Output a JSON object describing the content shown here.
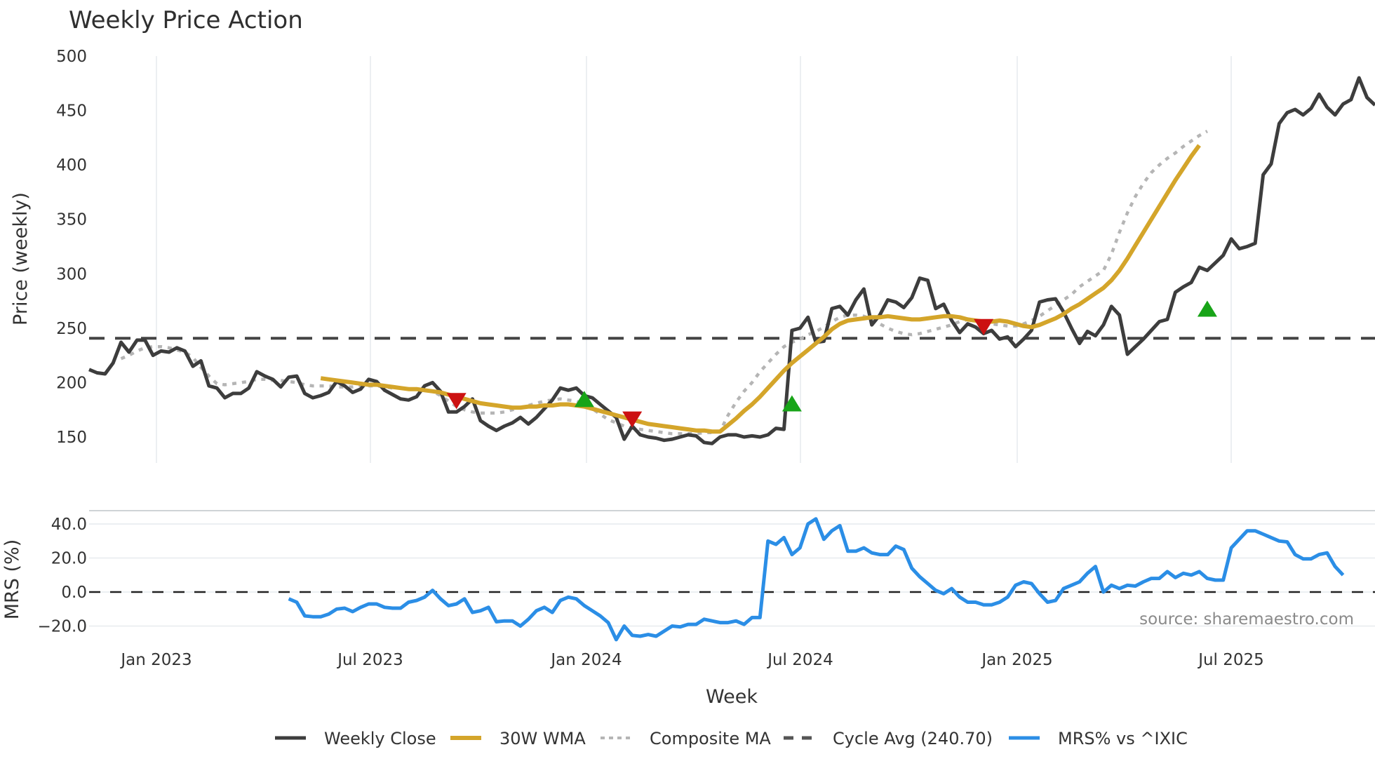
{
  "colors": {
    "close": "#3d3d3d",
    "wma": "#d4a52a",
    "composite": "#b5b5b5",
    "cycle": "#444444",
    "mrs": "#2b8ee6",
    "buy": "#18a418",
    "sell": "#cc1111",
    "grid": "#eceff2"
  },
  "labels": {
    "title": "Weekly Price Action",
    "price_ylabel": "Price (weekly)",
    "mrs_ylabel": "MRS (%)",
    "xlabel": "Week",
    "source": "source: sharemaestro.com"
  },
  "legend": [
    {
      "key": "close",
      "label": "Weekly Close"
    },
    {
      "key": "wma",
      "label": "30W WMA"
    },
    {
      "key": "composite",
      "label": "Composite MA"
    },
    {
      "key": "cycle",
      "label": "Cycle Avg (240.70)"
    },
    {
      "key": "mrs",
      "label": "MRS% vs ^IXIC"
    }
  ],
  "chart_data": [
    {
      "type": "line",
      "title": "Weekly Price Action",
      "xlabel": "Week",
      "ylabel": "Price (weekly)",
      "ylim": [
        120,
        500
      ],
      "yticks": [
        150,
        200,
        250,
        300,
        350,
        400,
        450,
        500
      ],
      "xticks": [
        "Jan 2023",
        "Jul 2023",
        "Jan 2024",
        "Jul 2024",
        "Jan 2025",
        "Jul 2025"
      ],
      "grid": true,
      "legend_position": "bottom",
      "cycle_avg": 240.7,
      "series": [
        {
          "name": "Weekly Close",
          "values": [
            212,
            209,
            208,
            218,
            237,
            228,
            239,
            239,
            225,
            229,
            228,
            232,
            229,
            215,
            220,
            197,
            195,
            186,
            190,
            190,
            195,
            210,
            206,
            203,
            196,
            205,
            206,
            190,
            186,
            188,
            191,
            201,
            197,
            191,
            194,
            203,
            201,
            193,
            189,
            185,
            184,
            187,
            197,
            200,
            192,
            173,
            173,
            178,
            185,
            165,
            160,
            156,
            160,
            163,
            168,
            162,
            168,
            176,
            184,
            195,
            193,
            195,
            188,
            186,
            180,
            174,
            168,
            148,
            160,
            152,
            150,
            149,
            147,
            148,
            150,
            152,
            151,
            145,
            144,
            150,
            152,
            152,
            150,
            151,
            150,
            152,
            158,
            157,
            248,
            250,
            260,
            237,
            238,
            268,
            270,
            262,
            276,
            286,
            253,
            262,
            276,
            274,
            269,
            278,
            296,
            294,
            268,
            272,
            257,
            246,
            254,
            251,
            245,
            248,
            240,
            242,
            233,
            240,
            248,
            274,
            276,
            277,
            265,
            250,
            236,
            247,
            243,
            253,
            270,
            262,
            226,
            233,
            240,
            248,
            256,
            258,
            283,
            288,
            292,
            306,
            303,
            310,
            317,
            332,
            323,
            325,
            328,
            391,
            401,
            438,
            448,
            451,
            446,
            452,
            465,
            453,
            446,
            456,
            460,
            480,
            462,
            455
          ]
        },
        {
          "name": "30W WMA",
          "start_index": 29,
          "values": [
            204,
            203,
            202,
            201,
            200,
            199,
            198,
            198,
            197,
            196,
            195,
            194,
            194,
            193,
            192,
            191,
            189,
            187,
            185,
            183,
            181,
            180,
            179,
            178,
            177,
            177,
            178,
            178,
            179,
            179,
            180,
            180,
            179,
            178,
            176,
            174,
            172,
            170,
            168,
            166,
            164,
            162,
            161,
            160,
            159,
            158,
            157,
            156,
            156,
            155,
            155,
            161,
            167,
            174,
            180,
            187,
            195,
            203,
            211,
            218,
            224,
            230,
            236,
            242,
            249,
            254,
            257,
            258,
            259,
            260,
            260,
            261,
            260,
            259,
            258,
            258,
            259,
            260,
            261,
            261,
            260,
            258,
            257,
            256,
            256,
            257,
            256,
            254,
            252,
            251,
            253,
            256,
            259,
            263,
            268,
            272,
            277,
            282,
            287,
            294,
            303,
            314,
            326,
            338,
            350,
            362,
            374,
            386,
            397,
            408,
            418
          ]
        },
        {
          "name": "Composite MA",
          "start_index": 4,
          "values": [
            222,
            225,
            229,
            232,
            233,
            233,
            232,
            230,
            228,
            223,
            214,
            206,
            199,
            198,
            199,
            200,
            201,
            203,
            203,
            202,
            202,
            201,
            200,
            198,
            197,
            197,
            197,
            196,
            196,
            196,
            197,
            197,
            197,
            196,
            195,
            195,
            194,
            194,
            193,
            192,
            188,
            183,
            178,
            175,
            173,
            172,
            172,
            172,
            173,
            175,
            177,
            179,
            181,
            183,
            184,
            185,
            184,
            183,
            180,
            176,
            171,
            166,
            163,
            160,
            158,
            157,
            156,
            155,
            154,
            153,
            153,
            153,
            153,
            154,
            154,
            155,
            170,
            182,
            192,
            200,
            210,
            218,
            226,
            233,
            237,
            240,
            244,
            247,
            251,
            256,
            260,
            262,
            262,
            261,
            258,
            254,
            250,
            247,
            245,
            244,
            245,
            247,
            249,
            251,
            253,
            256,
            258,
            257,
            256,
            254,
            253,
            252,
            252,
            254,
            257,
            261,
            266,
            271,
            276,
            281,
            288,
            293,
            298,
            303,
            318,
            338,
            356,
            371,
            383,
            393,
            400,
            406,
            411,
            417,
            422,
            427,
            431
          ]
        },
        {
          "name": "Buy signals",
          "marker": "triangle-up",
          "points": [
            {
              "i": 62,
              "v": 184
            },
            {
              "i": 88,
              "v": 180
            },
            {
              "i": 140,
              "v": 267
            }
          ]
        },
        {
          "name": "Sell signals",
          "marker": "triangle-down",
          "points": [
            {
              "i": 46,
              "v": 184
            },
            {
              "i": 68,
              "v": 167
            },
            {
              "i": 112,
              "v": 252
            }
          ]
        }
      ]
    },
    {
      "type": "line",
      "xlabel": "Week",
      "ylabel": "MRS (%)",
      "ylim": [
        -28,
        48
      ],
      "yticks": [
        -20.0,
        0.0,
        20.0,
        40.0
      ],
      "reference_line": 0.0,
      "series": [
        {
          "name": "MRS% vs ^IXIC",
          "start_index": 25,
          "values": [
            -4,
            -6,
            -14,
            -14.5,
            -14.5,
            -13,
            -10,
            -9.5,
            -11.5,
            -9,
            -7,
            -7,
            -9,
            -9.5,
            -9.5,
            -6,
            -5,
            -3,
            1,
            -4,
            -8,
            -7,
            -4,
            -12,
            -11,
            -9,
            -17.5,
            -17,
            -17,
            -20,
            -16,
            -11,
            -9,
            -12,
            -5,
            -3,
            -4,
            -8,
            -11,
            -14,
            -18,
            -28,
            -20,
            -25.5,
            -26,
            -25,
            -26,
            -23,
            -20,
            -20.5,
            -19,
            -19,
            -16,
            -17,
            -18,
            -18,
            -17,
            -19,
            -15,
            -15,
            30,
            28,
            32,
            22,
            26,
            40,
            43,
            31,
            36,
            39,
            24,
            24,
            26,
            23,
            22,
            22,
            27,
            25,
            14,
            9,
            5,
            1,
            -1,
            2,
            -3,
            -6,
            -6,
            -7.5,
            -7.5,
            -6,
            -3,
            4,
            6,
            5,
            -1,
            -6,
            -5,
            2,
            4,
            6,
            11,
            15,
            0,
            4,
            2,
            4,
            3.5,
            6,
            8,
            8,
            12,
            8.5,
            11,
            10,
            12,
            8,
            7,
            7,
            26,
            31,
            36,
            36,
            34,
            32,
            30,
            29.5,
            22,
            19.5,
            19.5,
            22,
            23,
            15,
            10
          ]
        }
      ]
    }
  ]
}
